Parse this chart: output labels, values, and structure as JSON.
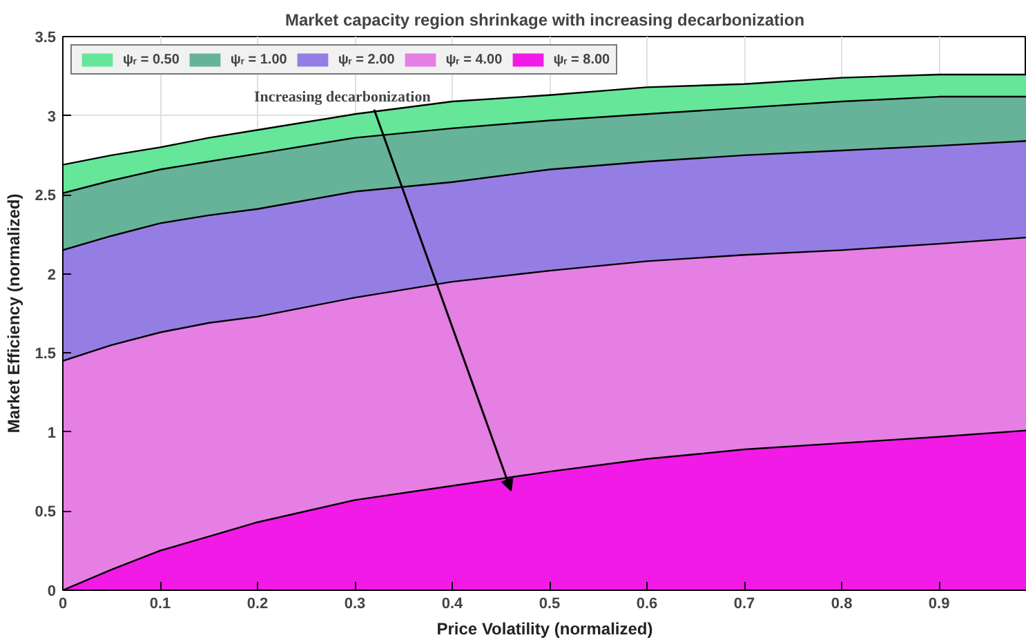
{
  "chart_data": {
    "type": "area",
    "title": "Market capacity region shrinkage with increasing decarbonization",
    "xlabel": "Price Volatility (normalized)",
    "ylabel": "Market Efficiency (normalized)",
    "x": [
      0,
      0.05,
      0.1,
      0.15,
      0.2,
      0.3,
      0.4,
      0.5,
      0.6,
      0.7,
      0.8,
      0.9,
      0.99
    ],
    "series": [
      {
        "name": "ψᵣ = 0.50",
        "color": "#66e699",
        "values": [
          2.69,
          2.75,
          2.8,
          2.86,
          2.91,
          3.01,
          3.09,
          3.13,
          3.18,
          3.2,
          3.24,
          3.26,
          3.26
        ]
      },
      {
        "name": "ψᵣ = 1.00",
        "color": "#66b39a",
        "values": [
          2.51,
          2.59,
          2.66,
          2.71,
          2.76,
          2.86,
          2.92,
          2.97,
          3.01,
          3.05,
          3.09,
          3.12,
          3.12
        ]
      },
      {
        "name": "ψᵣ = 2.00",
        "color": "#957ee3",
        "values": [
          2.15,
          2.24,
          2.32,
          2.37,
          2.41,
          2.52,
          2.58,
          2.66,
          2.71,
          2.75,
          2.78,
          2.81,
          2.84
        ]
      },
      {
        "name": "ψᵣ = 4.00",
        "color": "#e57fe3",
        "values": [
          1.45,
          1.55,
          1.63,
          1.69,
          1.73,
          1.85,
          1.95,
          2.02,
          2.08,
          2.12,
          2.15,
          2.19,
          2.23
        ]
      },
      {
        "name": "ψᵣ = 8.00",
        "color": "#f11ae6",
        "values": [
          0,
          0.13,
          0.25,
          0.34,
          0.43,
          0.57,
          0.66,
          0.75,
          0.83,
          0.89,
          0.93,
          0.97,
          1.01
        ]
      }
    ],
    "annotations": [
      "Increasing decarbonization"
    ],
    "xlim": [
      0,
      0.99
    ],
    "ylim": [
      0,
      3.5
    ],
    "xticks": [
      0,
      0.1,
      0.2,
      0.3,
      0.4,
      0.5,
      0.6,
      0.7,
      0.8,
      0.9
    ],
    "yticks": [
      0,
      0.5,
      1,
      1.5,
      2,
      2.5,
      3,
      3.5
    ],
    "grid": true,
    "legend": "top left"
  }
}
